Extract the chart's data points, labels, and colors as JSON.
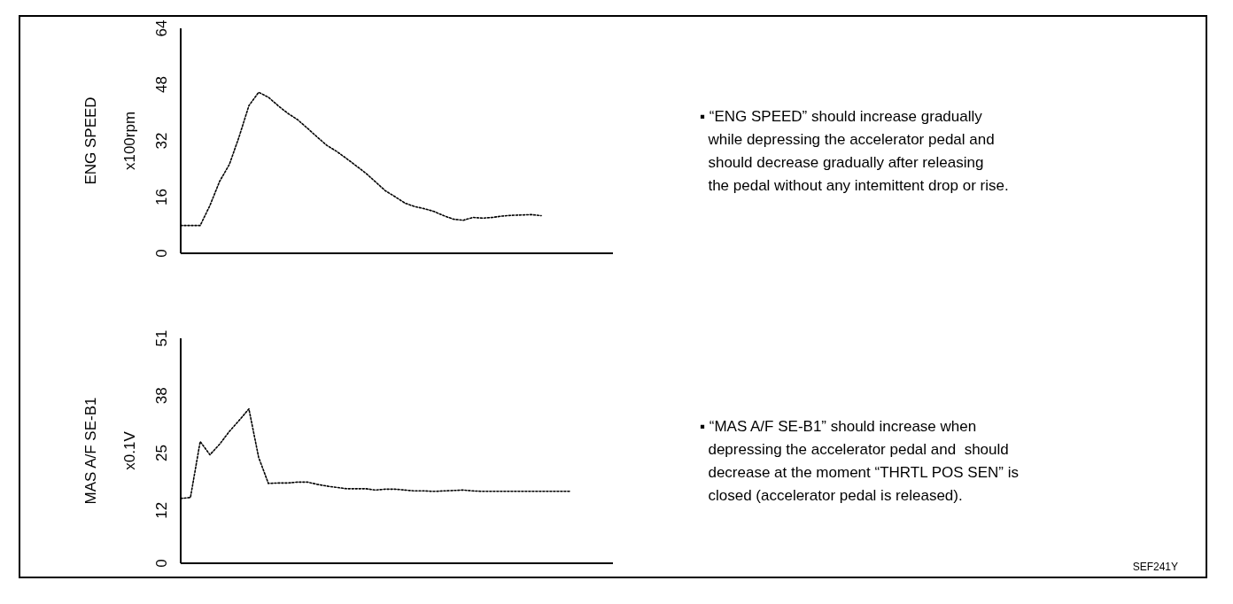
{
  "chart_data": [
    {
      "type": "line",
      "title": "ENG SPEED",
      "ylabel": "x100rpm",
      "categories": [
        null,
        null,
        null,
        null,
        null,
        null,
        null,
        null,
        null,
        null,
        null,
        null,
        null,
        null,
        null,
        null,
        null,
        null,
        null,
        null,
        null,
        null,
        null,
        null,
        null,
        null,
        null,
        null,
        null,
        null,
        null,
        null,
        null,
        null,
        null,
        null,
        null,
        null,
        null,
        null,
        null,
        null
      ],
      "series": [
        {
          "color": "#000000",
          "values": [
            7.9,
            7.9,
            7.9,
            13.6,
            20.5,
            25.3,
            33.2,
            42,
            45.8,
            44.4,
            42,
            39.8,
            38,
            35.6,
            33.1,
            30.7,
            29,
            27,
            24.9,
            22.8,
            20.3,
            17.8,
            16.1,
            14.3,
            13.3,
            12.7,
            11.9,
            10.7,
            9.7,
            9.4,
            10.2,
            10,
            10.2,
            10.6,
            10.8,
            10.9,
            11,
            10.7,
            null,
            null,
            null,
            null
          ]
        }
      ],
      "ylim": [
        0,
        64
      ],
      "yticks": [
        0,
        16,
        32,
        48,
        64
      ],
      "tick_labels": "y",
      "line_style": "dotted",
      "annotations": [
        "▪ “ENG SPEED” should increase gradually\n  while depressing the accelerator pedal and\n  should decrease gradually after releasing\n  the pedal without any intemittent drop or rise."
      ]
    },
    {
      "type": "line",
      "title": "MAS A/F SE-B1",
      "ylabel": "x0.1V",
      "categories": [
        null,
        null,
        null,
        null,
        null,
        null,
        null,
        null,
        null,
        null,
        null,
        null,
        null,
        null,
        null,
        null,
        null,
        null,
        null,
        null,
        null,
        null,
        null,
        null,
        null,
        null,
        null,
        null,
        null,
        null,
        null,
        null,
        null,
        null,
        null,
        null,
        null,
        null,
        null,
        null,
        null,
        null
      ],
      "series": [
        {
          "color": "#000000",
          "values": [
            14.7,
            14.9,
            27.6,
            24.6,
            27,
            29.9,
            32.4,
            35,
            24,
            18.1,
            18.2,
            18.2,
            18.4,
            18.4,
            17.9,
            17.5,
            17.2,
            16.9,
            16.9,
            16.9,
            16.6,
            16.8,
            16.8,
            16.6,
            16.4,
            16.4,
            16.3,
            16.4,
            16.5,
            16.6,
            16.4,
            16.3,
            16.3,
            16.3,
            16.3,
            16.3,
            16.3,
            16.3,
            16.3,
            16.3,
            16.3,
            null
          ]
        }
      ],
      "ylim": [
        0,
        51
      ],
      "yticks": [
        0,
        12,
        25,
        38,
        51
      ],
      "tick_labels": "y",
      "line_style": "dotted",
      "annotations": [
        "▪ “MAS A/F SE-B1” should increase when\n  depressing the accelerator pedal and  should\n  decrease at the moment “THRTL POS SEN” is\n  closed (accelerator pedal is released).",
        "SEF241Y"
      ]
    }
  ]
}
